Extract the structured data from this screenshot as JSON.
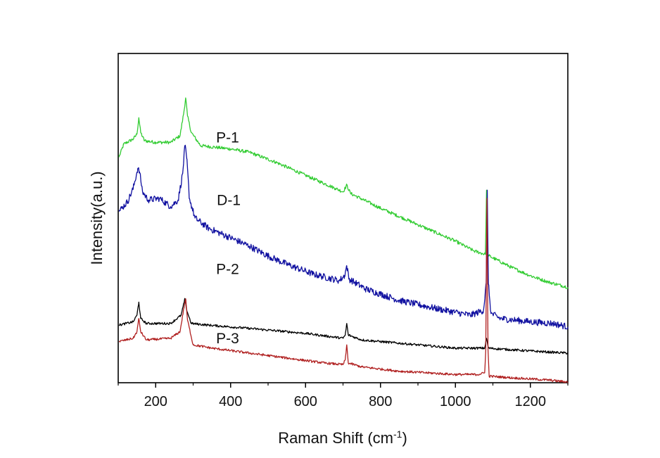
{
  "chart_data": {
    "type": "line",
    "title": "",
    "xlabel": "Raman Shift (cm",
    "xlabel_sup": "-1",
    "xlabel_tail": ")",
    "ylabel": "Intensity(a.u.)",
    "xlim": [
      100,
      1300
    ],
    "ylim": [
      0,
      100
    ],
    "y_ticks_shown": false,
    "grid": false,
    "x_ticks": [
      200,
      400,
      600,
      800,
      1000,
      1200
    ],
    "x_tick_labels": [
      "200",
      "400",
      "600",
      "800",
      "1000",
      "1200"
    ],
    "series": [
      {
        "name": "P-1",
        "label": "P-1",
        "label_at": {
          "x": 392,
          "y": 73
        },
        "color": "#33cc33",
        "points": [
          [
            102,
            68.5
          ],
          [
            115,
            72.5
          ],
          [
            140,
            74
          ],
          [
            150,
            75.5
          ],
          [
            155,
            80.5
          ],
          [
            160,
            76
          ],
          [
            170,
            73.5
          ],
          [
            200,
            73
          ],
          [
            240,
            73
          ],
          [
            265,
            75
          ],
          [
            275,
            82
          ],
          [
            280,
            86.5
          ],
          [
            285,
            81
          ],
          [
            295,
            76
          ],
          [
            320,
            72
          ],
          [
            400,
            71
          ],
          [
            450,
            70
          ],
          [
            520,
            67
          ],
          [
            600,
            63
          ],
          [
            680,
            59
          ],
          [
            700,
            58
          ],
          [
            710,
            60
          ],
          [
            720,
            57.5
          ],
          [
            800,
            53
          ],
          [
            900,
            48
          ],
          [
            1000,
            43
          ],
          [
            1050,
            40
          ],
          [
            1080,
            39
          ],
          [
            1083,
            58.5
          ],
          [
            1085,
            39
          ],
          [
            1090,
            38.5
          ],
          [
            1150,
            35
          ],
          [
            1200,
            32.5
          ],
          [
            1250,
            30.5
          ],
          [
            1300,
            29
          ]
        ],
        "noise": 0.5
      },
      {
        "name": "D-1",
        "label": "D-1",
        "label_at": {
          "x": 395,
          "y": 54
        },
        "color": "#1010a0",
        "points": [
          [
            102,
            52
          ],
          [
            125,
            55
          ],
          [
            140,
            59
          ],
          [
            152,
            65
          ],
          [
            157,
            64
          ],
          [
            165,
            58
          ],
          [
            180,
            55.5
          ],
          [
            210,
            56
          ],
          [
            240,
            53.5
          ],
          [
            260,
            55.5
          ],
          [
            272,
            63.5
          ],
          [
            278,
            72
          ],
          [
            283,
            68
          ],
          [
            290,
            56
          ],
          [
            305,
            50
          ],
          [
            340,
            47
          ],
          [
            400,
            44
          ],
          [
            450,
            41.5
          ],
          [
            500,
            38.5
          ],
          [
            550,
            36
          ],
          [
            620,
            33
          ],
          [
            690,
            31
          ],
          [
            704,
            32.5
          ],
          [
            710,
            35.5
          ],
          [
            716,
            31.5
          ],
          [
            760,
            28.5
          ],
          [
            850,
            25
          ],
          [
            950,
            22.5
          ],
          [
            1040,
            20.5
          ],
          [
            1075,
            22
          ],
          [
            1082,
            30
          ],
          [
            1085,
            58.5
          ],
          [
            1088,
            30
          ],
          [
            1095,
            21
          ],
          [
            1120,
            19.5
          ],
          [
            1200,
            18.5
          ],
          [
            1260,
            18
          ],
          [
            1300,
            17
          ]
        ],
        "noise": 1.0
      },
      {
        "name": "P-2",
        "label": "P-2",
        "label_at": {
          "x": 392,
          "y": 33
        },
        "color": "#000000",
        "points": [
          [
            102,
            17.5
          ],
          [
            140,
            18.5
          ],
          [
            150,
            20.5
          ],
          [
            155,
            24.5
          ],
          [
            160,
            19.5
          ],
          [
            175,
            18
          ],
          [
            240,
            18
          ],
          [
            268,
            20.5
          ],
          [
            278,
            25.5
          ],
          [
            283,
            22
          ],
          [
            295,
            18
          ],
          [
            340,
            17.5
          ],
          [
            450,
            16.5
          ],
          [
            600,
            15
          ],
          [
            700,
            13.5
          ],
          [
            706,
            14.5
          ],
          [
            710,
            18
          ],
          [
            714,
            14.5
          ],
          [
            750,
            13
          ],
          [
            900,
            11.5
          ],
          [
            1000,
            10.5
          ],
          [
            1078,
            10.5
          ],
          [
            1083,
            13.5
          ],
          [
            1088,
            10.5
          ],
          [
            1150,
            10
          ],
          [
            1250,
            9.3
          ],
          [
            1300,
            9
          ]
        ],
        "noise": 0.35
      },
      {
        "name": "P-3",
        "label": "P-3",
        "label_at": {
          "x": 392,
          "y": 12
        },
        "color": "#b02020",
        "points": [
          [
            102,
            12.5
          ],
          [
            140,
            13.5
          ],
          [
            150,
            15.5
          ],
          [
            155,
            19.5
          ],
          [
            160,
            15.5
          ],
          [
            175,
            13
          ],
          [
            240,
            13.5
          ],
          [
            265,
            15.5
          ],
          [
            275,
            22.5
          ],
          [
            280,
            25.5
          ],
          [
            285,
            19
          ],
          [
            300,
            11.5
          ],
          [
            350,
            10.5
          ],
          [
            450,
            9
          ],
          [
            550,
            7.5
          ],
          [
            650,
            6
          ],
          [
            700,
            5.5
          ],
          [
            706,
            7
          ],
          [
            710,
            11.5
          ],
          [
            714,
            6
          ],
          [
            750,
            4.8
          ],
          [
            850,
            3.5
          ],
          [
            1000,
            2.5
          ],
          [
            1060,
            2.5
          ],
          [
            1078,
            3
          ],
          [
            1081,
            10
          ],
          [
            1084,
            56
          ],
          [
            1087,
            10
          ],
          [
            1090,
            2
          ],
          [
            1150,
            1.5
          ],
          [
            1250,
            0.8
          ],
          [
            1300,
            0.2
          ]
        ],
        "noise": 0.35
      }
    ]
  }
}
